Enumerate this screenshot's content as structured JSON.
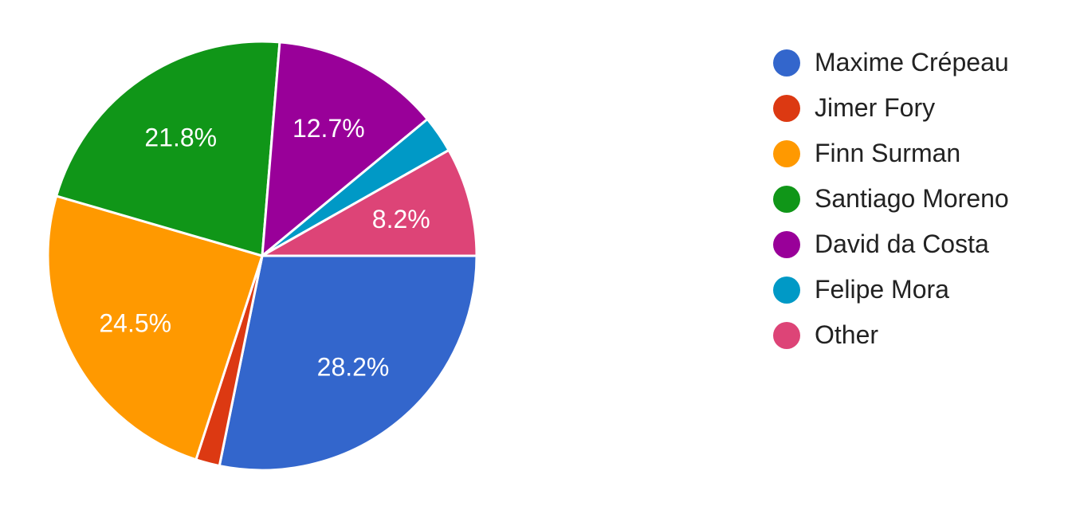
{
  "chart_data": {
    "type": "pie",
    "title": "",
    "legend_position": "right",
    "slices": [
      {
        "name": "Maxime Crépeau",
        "value": 28.2,
        "label": "28.2%",
        "color": "#3366cc"
      },
      {
        "name": "Jimer Fory",
        "value": 1.8,
        "label": "",
        "color": "#dc3912"
      },
      {
        "name": "Finn Surman",
        "value": 24.5,
        "label": "24.5%",
        "color": "#ff9900"
      },
      {
        "name": "Santiago Moreno",
        "value": 21.8,
        "label": "21.8%",
        "color": "#109618"
      },
      {
        "name": "David da Costa",
        "value": 12.7,
        "label": "12.7%",
        "color": "#990099"
      },
      {
        "name": "Felipe Mora",
        "value": 2.8,
        "label": "",
        "color": "#0099c6"
      },
      {
        "name": "Other",
        "value": 8.2,
        "label": "8.2%",
        "color": "#dd4477"
      }
    ]
  }
}
